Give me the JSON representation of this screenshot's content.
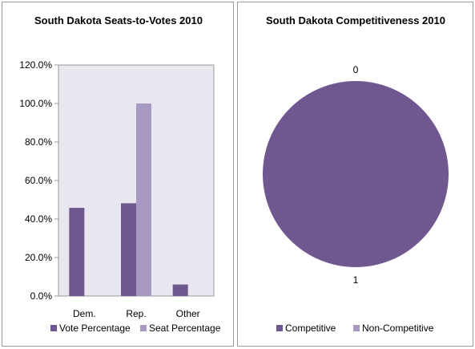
{
  "chart_data": [
    {
      "type": "bar",
      "title": "South Dakota Seats-to-Votes 2010",
      "categories": [
        "Dem.",
        "Rep.",
        "Other"
      ],
      "series": [
        {
          "name": "Vote Percentage",
          "values": [
            45.8,
            48.2,
            6.0
          ],
          "color": "#70578f"
        },
        {
          "name": "Seat Percentage",
          "values": [
            0.0,
            100.0,
            0.0
          ],
          "color": "#a799c1"
        }
      ],
      "ylim": [
        0,
        120
      ],
      "yticks": [
        "0.0%",
        "20.0%",
        "40.0%",
        "60.0%",
        "80.0%",
        "100.0%",
        "120.0%"
      ],
      "legend": "bottom",
      "plot_background": "#e8e6ee"
    },
    {
      "type": "pie",
      "title": "South Dakota Competitiveness 2010",
      "categories": [
        "Competitive",
        "Non-Competitive"
      ],
      "values": [
        1,
        0
      ],
      "data_labels": [
        "1",
        "0"
      ],
      "colors": [
        "#70578f",
        "#a799c1"
      ],
      "legend": "bottom"
    }
  ]
}
